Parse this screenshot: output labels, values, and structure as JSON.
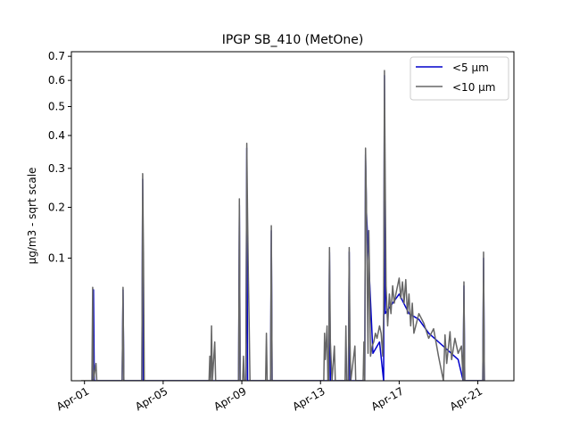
{
  "chart_data": {
    "type": "line",
    "title": "IPGP SB_410 (MetOne)",
    "xlabel": "",
    "ylabel": "µg/m3 - sqrt scale",
    "y_scale": "sqrt",
    "ylim": [
      0,
      0.72
    ],
    "xlim": [
      "2021-03-31T08:00",
      "2021-04-22T20:00"
    ],
    "x_ticks": [
      {
        "date": "2021-04-01",
        "label": "Apr-01"
      },
      {
        "date": "2021-04-05",
        "label": "Apr-05"
      },
      {
        "date": "2021-04-09",
        "label": "Apr-09"
      },
      {
        "date": "2021-04-13",
        "label": "Apr-13"
      },
      {
        "date": "2021-04-17",
        "label": "Apr-17"
      },
      {
        "date": "2021-04-21",
        "label": "Apr-21"
      }
    ],
    "y_ticks": [
      {
        "value": 0.1,
        "label": "0.1"
      },
      {
        "value": 0.2,
        "label": "0.2"
      },
      {
        "value": 0.3,
        "label": "0.3"
      },
      {
        "value": 0.4,
        "label": "0.4"
      },
      {
        "value": 0.5,
        "label": "0.5"
      },
      {
        "value": 0.6,
        "label": "0.6"
      },
      {
        "value": 0.7,
        "label": "0.7"
      }
    ],
    "grid": false,
    "legend_position": "top-right",
    "series": [
      {
        "name": "<5 µm",
        "color": "#0000cc",
        "points": [
          [
            "2021-04-01T10:00",
            0.0
          ],
          [
            "2021-04-01T11:00",
            0.055
          ],
          [
            "2021-04-01T12:00",
            0.0
          ],
          [
            "2021-04-02T22:00",
            0.0
          ],
          [
            "2021-04-02T23:00",
            0.055
          ],
          [
            "2021-04-03T00:00",
            0.0
          ],
          [
            "2021-04-03T22:00",
            0.0
          ],
          [
            "2021-04-03T23:00",
            0.27
          ],
          [
            "2021-04-04T00:00",
            0.0
          ],
          [
            "2021-04-08T20:00",
            0.0
          ],
          [
            "2021-04-08T21:00",
            0.205
          ],
          [
            "2021-04-08T22:00",
            0.0
          ],
          [
            "2021-04-09T05:00",
            0.0
          ],
          [
            "2021-04-09T06:00",
            0.36
          ],
          [
            "2021-04-09T07:00",
            0.0
          ],
          [
            "2021-04-10T11:00",
            0.0
          ],
          [
            "2021-04-10T12:00",
            0.15
          ],
          [
            "2021-04-10T13:00",
            0.0
          ],
          [
            "2021-04-13T10:00",
            0.0
          ],
          [
            "2021-04-13T11:00",
            0.11
          ],
          [
            "2021-04-13T12:00",
            0.0
          ],
          [
            "2021-04-14T10:00",
            0.0
          ],
          [
            "2021-04-14T11:00",
            0.11
          ],
          [
            "2021-04-14T12:00",
            0.0
          ],
          [
            "2021-04-15T06:00",
            0.0
          ],
          [
            "2021-04-15T07:00",
            0.34
          ],
          [
            "2021-04-15T08:00",
            0.19
          ],
          [
            "2021-04-15T16:00",
            0.005
          ],
          [
            "2021-04-16T00:00",
            0.01
          ],
          [
            "2021-04-16T05:00",
            0.0
          ],
          [
            "2021-04-16T06:00",
            0.62
          ],
          [
            "2021-04-16T07:00",
            0.03
          ],
          [
            "2021-04-16T16:00",
            0.04
          ],
          [
            "2021-04-17T00:00",
            0.05
          ],
          [
            "2021-04-17T12:00",
            0.03
          ],
          [
            "2021-04-18T00:00",
            0.025
          ],
          [
            "2021-04-18T12:00",
            0.015
          ],
          [
            "2021-04-19T00:00",
            0.01
          ],
          [
            "2021-04-19T12:00",
            0.006
          ],
          [
            "2021-04-20T00:00",
            0.003
          ],
          [
            "2021-04-20T06:00",
            0.0
          ],
          [
            "2021-04-20T07:00",
            0.06
          ],
          [
            "2021-04-20T08:00",
            0.0
          ],
          [
            "2021-04-21T06:00",
            0.0
          ],
          [
            "2021-04-21T07:00",
            0.1
          ],
          [
            "2021-04-21T08:00",
            0.0
          ]
        ]
      },
      {
        "name": "<10 µm",
        "color": "#666666",
        "points": [
          [
            "2021-03-31T20:00",
            0.0
          ],
          [
            "2021-04-01T09:00",
            0.0
          ],
          [
            "2021-04-01T10:00",
            0.058
          ],
          [
            "2021-04-01T11:00",
            0.0
          ],
          [
            "2021-04-01T14:00",
            0.002
          ],
          [
            "2021-04-01T15:00",
            0.0
          ],
          [
            "2021-04-02T22:00",
            0.0
          ],
          [
            "2021-04-02T23:00",
            0.058
          ],
          [
            "2021-04-03T00:00",
            0.0
          ],
          [
            "2021-04-03T22:00",
            0.0
          ],
          [
            "2021-04-03T23:00",
            0.285
          ],
          [
            "2021-04-04T00:00",
            0.11
          ],
          [
            "2021-04-04T01:00",
            0.0
          ],
          [
            "2021-04-07T08:00",
            0.0
          ],
          [
            "2021-04-07T09:00",
            0.004
          ],
          [
            "2021-04-07T10:00",
            0.0
          ],
          [
            "2021-04-07T11:00",
            0.02
          ],
          [
            "2021-04-07T12:00",
            0.0
          ],
          [
            "2021-04-07T15:00",
            0.01
          ],
          [
            "2021-04-07T16:00",
            0.0
          ],
          [
            "2021-04-08T20:00",
            0.0
          ],
          [
            "2021-04-08T21:00",
            0.22
          ],
          [
            "2021-04-08T22:00",
            0.0
          ],
          [
            "2021-04-09T01:00",
            0.0
          ],
          [
            "2021-04-09T02:00",
            0.004
          ],
          [
            "2021-04-09T03:00",
            0.0
          ],
          [
            "2021-04-09T05:00",
            0.0
          ],
          [
            "2021-04-09T06:00",
            0.375
          ],
          [
            "2021-04-09T07:00",
            0.18
          ],
          [
            "2021-04-09T08:00",
            0.07
          ],
          [
            "2021-04-09T09:00",
            0.02
          ],
          [
            "2021-04-09T10:00",
            0.0
          ],
          [
            "2021-04-10T05:00",
            0.0
          ],
          [
            "2021-04-10T06:00",
            0.015
          ],
          [
            "2021-04-10T07:00",
            0.0
          ],
          [
            "2021-04-10T11:00",
            0.0
          ],
          [
            "2021-04-10T12:00",
            0.16
          ],
          [
            "2021-04-10T13:00",
            0.0
          ],
          [
            "2021-04-13T04:00",
            0.0
          ],
          [
            "2021-04-13T05:00",
            0.015
          ],
          [
            "2021-04-13T06:00",
            0.003
          ],
          [
            "2021-04-13T08:00",
            0.02
          ],
          [
            "2021-04-13T09:00",
            0.0
          ],
          [
            "2021-04-13T10:00",
            0.0
          ],
          [
            "2021-04-13T11:00",
            0.118
          ],
          [
            "2021-04-13T12:00",
            0.01
          ],
          [
            "2021-04-13T14:00",
            0.0
          ],
          [
            "2021-04-13T17:00",
            0.008
          ],
          [
            "2021-04-13T18:00",
            0.0
          ],
          [
            "2021-04-14T06:00",
            0.0
          ],
          [
            "2021-04-14T07:00",
            0.02
          ],
          [
            "2021-04-14T08:00",
            0.0
          ],
          [
            "2021-04-14T10:00",
            0.0
          ],
          [
            "2021-04-14T11:00",
            0.118
          ],
          [
            "2021-04-14T12:00",
            0.01
          ],
          [
            "2021-04-14T13:00",
            0.0
          ],
          [
            "2021-04-14T18:00",
            0.008
          ],
          [
            "2021-04-14T19:00",
            0.0
          ],
          [
            "2021-04-15T04:00",
            0.0
          ],
          [
            "2021-04-15T05:00",
            0.01
          ],
          [
            "2021-04-15T06:00",
            0.0
          ],
          [
            "2021-04-15T07:00",
            0.36
          ],
          [
            "2021-04-15T08:00",
            0.21
          ],
          [
            "2021-04-15T09:00",
            0.06
          ],
          [
            "2021-04-15T10:00",
            0.005
          ],
          [
            "2021-04-15T11:00",
            0.15
          ],
          [
            "2021-04-15T12:00",
            0.06
          ],
          [
            "2021-04-15T13:00",
            0.004
          ],
          [
            "2021-04-15T15:00",
            0.008
          ],
          [
            "2021-04-15T17:00",
            0.01
          ],
          [
            "2021-04-15T19:00",
            0.015
          ],
          [
            "2021-04-15T21:00",
            0.012
          ],
          [
            "2021-04-16T00:00",
            0.02
          ],
          [
            "2021-04-16T02:00",
            0.015
          ],
          [
            "2021-04-16T04:00",
            0.004
          ],
          [
            "2021-04-16T05:00",
            0.03
          ],
          [
            "2021-04-16T06:00",
            0.64
          ],
          [
            "2021-04-16T07:00",
            0.26
          ],
          [
            "2021-04-16T08:00",
            0.06
          ],
          [
            "2021-04-16T10:00",
            0.02
          ],
          [
            "2021-04-16T12:00",
            0.05
          ],
          [
            "2021-04-16T14:00",
            0.03
          ],
          [
            "2021-04-16T16:00",
            0.06
          ],
          [
            "2021-04-16T18:00",
            0.04
          ],
          [
            "2021-04-16T20:00",
            0.05
          ],
          [
            "2021-04-17T00:00",
            0.07
          ],
          [
            "2021-04-17T02:00",
            0.045
          ],
          [
            "2021-04-17T04:00",
            0.065
          ],
          [
            "2021-04-17T06:00",
            0.04
          ],
          [
            "2021-04-17T08:00",
            0.068
          ],
          [
            "2021-04-17T10:00",
            0.03
          ],
          [
            "2021-04-17T12:00",
            0.05
          ],
          [
            "2021-04-17T14:00",
            0.02
          ],
          [
            "2021-04-17T16:00",
            0.04
          ],
          [
            "2021-04-17T18:00",
            0.015
          ],
          [
            "2021-04-18T00:00",
            0.03
          ],
          [
            "2021-04-18T06:00",
            0.022
          ],
          [
            "2021-04-18T12:00",
            0.012
          ],
          [
            "2021-04-18T18:00",
            0.018
          ],
          [
            "2021-04-19T00:00",
            0.004
          ],
          [
            "2021-04-19T06:00",
            0.0
          ],
          [
            "2021-04-19T08:00",
            0.014
          ],
          [
            "2021-04-19T10:00",
            0.002
          ],
          [
            "2021-04-19T14:00",
            0.016
          ],
          [
            "2021-04-19T16:00",
            0.003
          ],
          [
            "2021-04-19T20:00",
            0.012
          ],
          [
            "2021-04-20T00:00",
            0.005
          ],
          [
            "2021-04-20T04:00",
            0.008
          ],
          [
            "2021-04-20T06:00",
            0.0
          ],
          [
            "2021-04-20T07:00",
            0.065
          ],
          [
            "2021-04-20T08:00",
            0.0
          ],
          [
            "2021-04-21T06:00",
            0.0
          ],
          [
            "2021-04-21T07:00",
            0.11
          ],
          [
            "2021-04-21T08:00",
            0.0
          ]
        ]
      }
    ]
  }
}
